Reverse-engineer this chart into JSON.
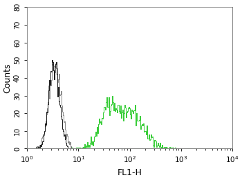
{
  "title": "",
  "xlabel": "FL1-H",
  "ylabel": "Counts",
  "xlim_log": [
    1,
    10000
  ],
  "ylim": [
    0,
    80
  ],
  "yticks": [
    0,
    10,
    20,
    30,
    40,
    50,
    60,
    70,
    80
  ],
  "xticks_log": [
    1,
    10,
    100,
    1000,
    10000
  ],
  "background_color": "#ffffff",
  "black_color": "#1a1a1a",
  "gray_color": "#888888",
  "green_color": "#33cc33",
  "line_width": 0.7,
  "figsize": [
    3.5,
    2.61
  ],
  "dpi": 100,
  "black_peak_log": 0.52,
  "black_sigma_log": 0.1,
  "gray_peak_log": 0.54,
  "gray_sigma_log": 0.12,
  "green_peak1_log": 1.92,
  "green_sigma1_log": 0.3,
  "green_peak2_log": 1.55,
  "green_sigma2_log": 0.12,
  "black_scale": 50,
  "gray_scale": 48,
  "green_scale": 30
}
